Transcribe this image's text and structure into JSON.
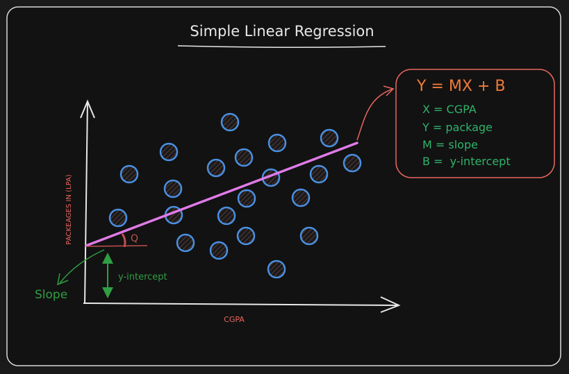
{
  "title": "Simple Linear Regression",
  "axes": {
    "x_label": "CGPA",
    "y_label": "PACKEAGES IN (LPA)"
  },
  "annotations": {
    "angle_symbol": "Q",
    "slope_label": "Slope",
    "intercept_label": "y-intercept"
  },
  "equation_box": {
    "equation": "Y = MX + B",
    "definitions": [
      "X = CGPA",
      "Y = package",
      "M = slope",
      "B =  y-intercept"
    ]
  },
  "colors": {
    "background": "#121212",
    "frame": "#d9d9d9",
    "axes": "#e8e8e8",
    "points": "#4a90e2",
    "regression_line": "#e07be8",
    "equation_accent": "#f07a3a",
    "equation_border": "#e8675f",
    "definitions": "#2fb36a",
    "annotation_green": "#2f9e44",
    "annotation_red": "#c0504d"
  },
  "icons": {
    "data_point": "hatched-circle",
    "arrow": "hand-drawn-arrow"
  }
}
